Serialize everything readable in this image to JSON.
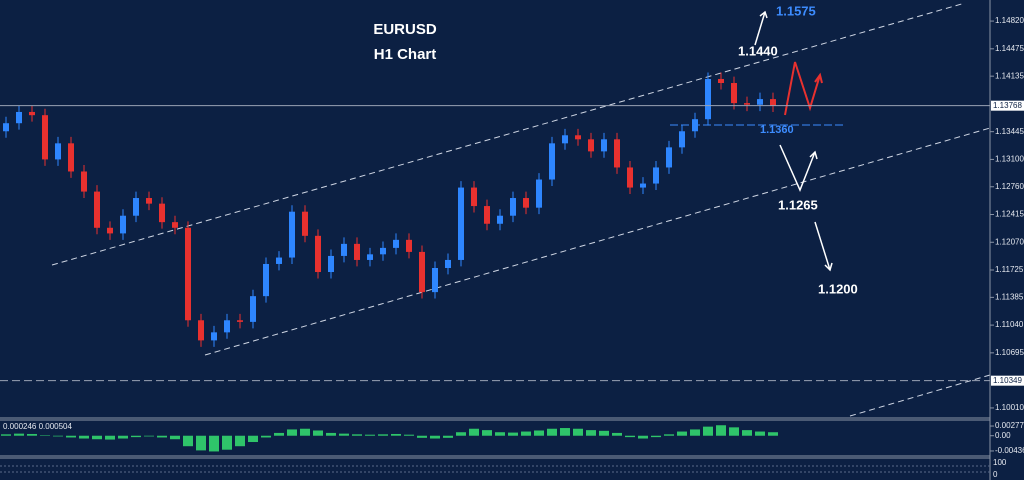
{
  "chart_data": {
    "type": "candlestick",
    "title": "EURUSD",
    "subtitle": "H1 Chart",
    "up_color": "#2e86ff",
    "down_color": "#e8312f",
    "open": [
      1.1345,
      1.1355,
      1.1369,
      1.1365,
      1.131,
      1.133,
      1.1295,
      1.127,
      1.1225,
      1.1218,
      1.124,
      1.1262,
      1.1255,
      1.1232,
      1.1225,
      1.111,
      1.1085,
      1.1095,
      1.111,
      1.1108,
      1.114,
      1.118,
      1.1188,
      1.1245,
      1.1215,
      1.117,
      1.119,
      1.1205,
      1.1185,
      1.1192,
      1.12,
      1.121,
      1.1195,
      1.1145,
      1.1175,
      1.1185,
      1.1275,
      1.1252,
      1.123,
      1.124,
      1.1262,
      1.125,
      1.1285,
      1.133,
      1.134,
      1.1335,
      1.132,
      1.1335,
      1.13,
      1.1275,
      1.128,
      1.13,
      1.1325,
      1.1345,
      1.136,
      1.141,
      1.1405,
      1.138,
      1.1378,
      1.1385
    ],
    "high": [
      1.1363,
      1.1377,
      1.1377,
      1.1373,
      1.1338,
      1.1338,
      1.1303,
      1.1278,
      1.1233,
      1.1248,
      1.127,
      1.127,
      1.1263,
      1.124,
      1.1233,
      1.1118,
      1.1103,
      1.1118,
      1.1118,
      1.1148,
      1.1188,
      1.1196,
      1.1253,
      1.1253,
      1.1223,
      1.1198,
      1.1213,
      1.1213,
      1.12,
      1.1208,
      1.1218,
      1.1218,
      1.1203,
      1.1183,
      1.1193,
      1.1283,
      1.1283,
      1.126,
      1.1248,
      1.127,
      1.127,
      1.1293,
      1.1338,
      1.1348,
      1.1348,
      1.1343,
      1.1343,
      1.1343,
      1.1308,
      1.1288,
      1.1308,
      1.1333,
      1.1353,
      1.1368,
      1.1418,
      1.1418,
      1.1413,
      1.1388,
      1.1393,
      1.1393
    ],
    "low": [
      1.1337,
      1.1347,
      1.1357,
      1.1302,
      1.1302,
      1.1287,
      1.1262,
      1.1217,
      1.121,
      1.121,
      1.1232,
      1.1247,
      1.1224,
      1.1217,
      1.1102,
      1.1077,
      1.1077,
      1.1087,
      1.11,
      1.11,
      1.1132,
      1.1172,
      1.118,
      1.1207,
      1.1162,
      1.1162,
      1.1182,
      1.1177,
      1.1177,
      1.1184,
      1.1192,
      1.1187,
      1.1137,
      1.1137,
      1.1167,
      1.1177,
      1.1244,
      1.1222,
      1.1222,
      1.1232,
      1.1242,
      1.1242,
      1.1277,
      1.1322,
      1.1327,
      1.1312,
      1.1312,
      1.1292,
      1.1267,
      1.1267,
      1.1272,
      1.1292,
      1.1317,
      1.1337,
      1.1352,
      1.1397,
      1.1372,
      1.137,
      1.137,
      1.1369
    ],
    "close": [
      1.1355,
      1.1369,
      1.1365,
      1.131,
      1.133,
      1.1295,
      1.127,
      1.1225,
      1.1218,
      1.124,
      1.1262,
      1.1255,
      1.1232,
      1.1225,
      1.111,
      1.1085,
      1.1095,
      1.111,
      1.1108,
      1.114,
      1.118,
      1.1188,
      1.1245,
      1.1215,
      1.117,
      1.119,
      1.1205,
      1.1185,
      1.1192,
      1.12,
      1.121,
      1.1195,
      1.1145,
      1.1175,
      1.1185,
      1.1275,
      1.1252,
      1.123,
      1.124,
      1.1262,
      1.125,
      1.1285,
      1.133,
      1.134,
      1.1335,
      1.132,
      1.1335,
      1.13,
      1.1275,
      1.128,
      1.13,
      1.1325,
      1.1345,
      1.136,
      1.141,
      1.1405,
      1.138,
      1.1378,
      1.1385,
      1.1377
    ],
    "ylim": [
      1.09885,
      1.15082
    ],
    "yticks": [
      {
        "value": 1.1482,
        "label": "1.14820"
      },
      {
        "value": 1.14475,
        "label": "1.14475"
      },
      {
        "value": 1.14135,
        "label": "1.14135"
      },
      {
        "value": 1.13445,
        "label": "1.13445"
      },
      {
        "value": 1.131,
        "label": "1.13100"
      },
      {
        "value": 1.1276,
        "label": "1.12760"
      },
      {
        "value": 1.12415,
        "label": "1.12415"
      },
      {
        "value": 1.1207,
        "label": "1.12070"
      },
      {
        "value": 1.11725,
        "label": "1.11725"
      },
      {
        "value": 1.11385,
        "label": "1.11385"
      },
      {
        "value": 1.1104,
        "label": "1.11040"
      },
      {
        "value": 1.10695,
        "label": "1.10695"
      },
      {
        "value": 1.1001,
        "label": "1.10010"
      }
    ],
    "current_price": {
      "value": 1.13768,
      "label": "1.13768"
    },
    "level_line": {
      "value": 1.10349,
      "label": "1.10349"
    },
    "annotations": [
      "1.1575",
      "1.1440",
      "1.1360",
      "1.1265",
      "1.1200"
    ],
    "macd": {
      "header": "0.000246 0.000504",
      "color": "#2fc46a",
      "values": [
        0.0004,
        0.0006,
        0.0005,
        0.0001,
        -0.0002,
        -0.0005,
        -0.0008,
        -0.001,
        -0.0011,
        -0.0008,
        -0.0004,
        -0.0002,
        -0.0005,
        -0.001,
        -0.003,
        -0.0042,
        -0.0045,
        -0.004,
        -0.003,
        -0.0018,
        -0.0005,
        0.0008,
        0.0018,
        0.002,
        0.0015,
        0.0008,
        0.0006,
        0.0004,
        0.0003,
        0.0004,
        0.0005,
        0.0003,
        -0.0006,
        -0.0008,
        -0.0006,
        0.001,
        0.002,
        0.0016,
        0.001,
        0.0009,
        0.0012,
        0.0015,
        0.002,
        0.0022,
        0.002,
        0.0016,
        0.0014,
        0.0008,
        -0.0004,
        -0.0008,
        -0.0004,
        0.0004,
        0.0012,
        0.0018,
        0.0026,
        0.003,
        0.0024,
        0.0016,
        0.0012,
        0.001
      ],
      "ylim": [
        -0.0058,
        0.0045
      ],
      "yticks": [
        0.002774,
        {
          "value": 0,
          "label": "0.00"
        },
        -0.004361
      ]
    },
    "oscillator_yticks": [
      100,
      0
    ]
  }
}
